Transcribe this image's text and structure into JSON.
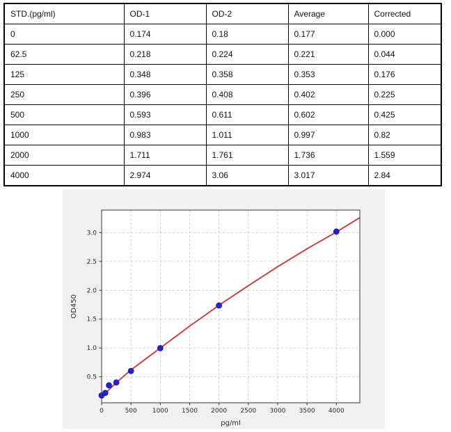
{
  "table": {
    "columns": [
      "STD.(pg/ml)",
      "OD-1",
      "OD-2",
      "Average",
      "Corrected"
    ],
    "rows": [
      [
        "0",
        "0.174",
        "0.18",
        "0.177",
        "0.000"
      ],
      [
        "62.5",
        "0.218",
        "0.224",
        "0.221",
        "0.044"
      ],
      [
        "125",
        "0.348",
        "0.358",
        "0.353",
        "0.176"
      ],
      [
        "250",
        "0.396",
        "0.408",
        "0.402",
        "0.225"
      ],
      [
        "500",
        "0.593",
        "0.611",
        "0.602",
        "0.425"
      ],
      [
        "1000",
        "0.983",
        "1.011",
        "0.997",
        "0.82"
      ],
      [
        "2000",
        "1.711",
        "1.761",
        "1.736",
        "1.559"
      ],
      [
        "4000",
        "2.974",
        "3.06",
        "3.017",
        "2.84"
      ]
    ]
  },
  "chart_data": {
    "type": "scatter",
    "title": "",
    "xlabel": "pg/ml",
    "ylabel": "OD450",
    "x": [
      0,
      62.5,
      125,
      250,
      500,
      1000,
      2000,
      4000
    ],
    "y": [
      0.177,
      0.221,
      0.353,
      0.402,
      0.602,
      0.997,
      1.736,
      3.017
    ],
    "fit_line": {
      "x": [
        0,
        100,
        250,
        500,
        750,
        1000,
        1250,
        1500,
        1750,
        2000,
        2500,
        3000,
        3500,
        4000,
        4400
      ],
      "y": [
        0.14,
        0.25,
        0.4,
        0.62,
        0.81,
        1.0,
        1.19,
        1.38,
        1.56,
        1.74,
        2.08,
        2.41,
        2.72,
        3.01,
        3.26
      ]
    },
    "xlim": [
      0,
      4400
    ],
    "ylim": [
      0.05,
      3.39
    ],
    "xticks": [
      0,
      500,
      1000,
      1500,
      2000,
      2500,
      3000,
      3500,
      4000
    ],
    "yticks": [
      0.5,
      1.0,
      1.5,
      2.0,
      2.5,
      3.0
    ],
    "grid": true,
    "legend": "none",
    "colors": {
      "point": "#2323c8",
      "point_edge": "#1515a0",
      "line": "#d92b2b",
      "grid": "#c9c9c9",
      "figure_bg": "#f1f1f1",
      "plot_bg": "#ffffff",
      "spine": "#333333",
      "tick_text": "#262626"
    }
  }
}
